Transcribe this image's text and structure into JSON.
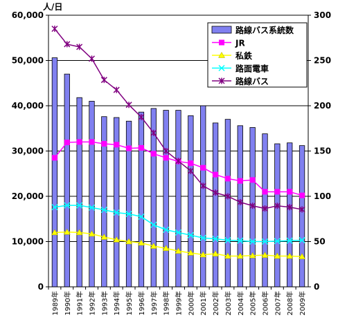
{
  "chart_data": {
    "type": "bar",
    "y_left_unit": "人/日",
    "y_left": {
      "min": 0,
      "max": 60000,
      "ticks": [
        "0",
        "10,000",
        "20,000",
        "30,000",
        "40,000",
        "50,000",
        "60,000"
      ]
    },
    "y_right": {
      "min": 0,
      "max": 300,
      "ticks": [
        "0",
        "50",
        "100",
        "150",
        "200",
        "250",
        "300"
      ]
    },
    "categories": [
      "1989年",
      "1990年",
      "1991年",
      "1992年",
      "1993年",
      "1994年",
      "1995年",
      "1996年",
      "1997年",
      "1998年",
      "1999年",
      "2000年",
      "2001年",
      "2002年",
      "2003年",
      "2004年",
      "2005年",
      "2006年",
      "2007年",
      "2008年",
      "2009年"
    ],
    "bar_series": {
      "name": "路線バス系統数",
      "axis": "right",
      "color": "#8080f0",
      "values": [
        253,
        235,
        209,
        205,
        188,
        187,
        183,
        193,
        197,
        195,
        195,
        189,
        200,
        181,
        185,
        178,
        176,
        169,
        158,
        159,
        156
      ]
    },
    "line_series": [
      {
        "name": "JR",
        "axis": "left",
        "color": "#ff00ff",
        "marker": "square",
        "values": [
          28500,
          31900,
          32000,
          32000,
          31600,
          31400,
          30600,
          30700,
          29400,
          28500,
          27700,
          27300,
          26300,
          24800,
          23900,
          23400,
          23600,
          21000,
          21000,
          21000,
          20200
        ]
      },
      {
        "name": "私鉄",
        "axis": "left",
        "color": "#ffff00",
        "marker": "triangle",
        "values": [
          12000,
          12100,
          12000,
          11700,
          11000,
          10400,
          10000,
          9700,
          9000,
          8500,
          7900,
          7500,
          7100,
          7300,
          6800,
          6800,
          6900,
          7000,
          6800,
          6800,
          6700
        ]
      },
      {
        "name": "路面電車",
        "axis": "left",
        "color": "#00ffff",
        "marker": "x",
        "values": [
          17600,
          18000,
          18000,
          17500,
          17000,
          16400,
          16100,
          15500,
          13700,
          12600,
          12000,
          11400,
          10800,
          10600,
          10300,
          10200,
          10000,
          10000,
          10100,
          10200,
          10300
        ]
      },
      {
        "name": "路線バス",
        "axis": "left",
        "color": "#800080",
        "marker": "star",
        "values": [
          57000,
          53600,
          53000,
          50400,
          45700,
          43500,
          40200,
          37500,
          34000,
          30000,
          27800,
          25600,
          22300,
          20800,
          20000,
          18700,
          17900,
          17300,
          17900,
          17600,
          17100
        ]
      }
    ],
    "grid": "horizontal",
    "legend_position": "top-right"
  }
}
